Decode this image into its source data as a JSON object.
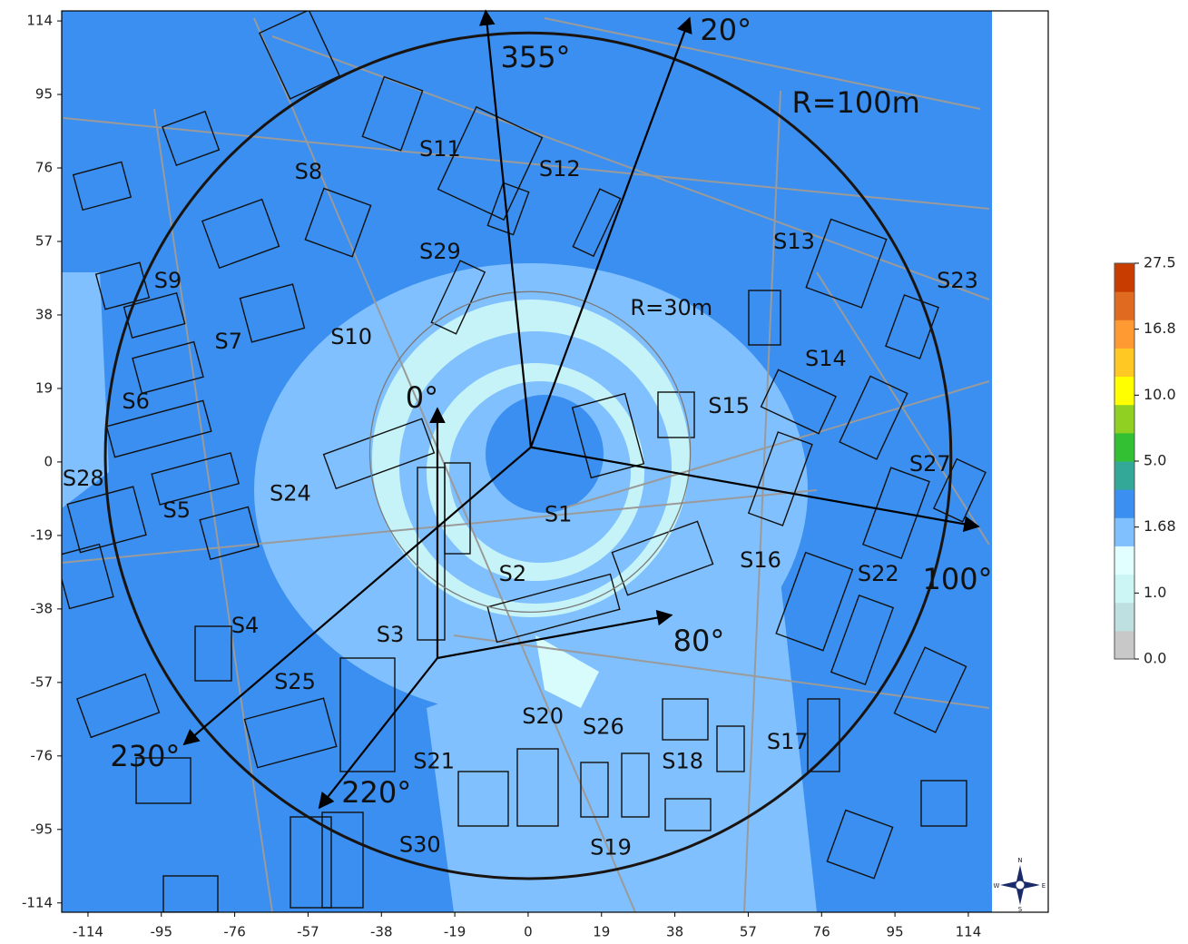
{
  "chart_data": {
    "type": "map",
    "xlim": [
      -120.8,
      134.7
    ],
    "ylim": [
      -116.4,
      116.6
    ],
    "xticks": [
      -114,
      -95,
      -76,
      -57,
      -38,
      -19,
      0,
      19,
      38,
      57,
      76,
      95,
      114
    ],
    "yticks": [
      -114,
      -95,
      -76,
      -57,
      -38,
      -19,
      0,
      19,
      38,
      57,
      76,
      95,
      114
    ],
    "circles": [
      {
        "label": "R=100m",
        "center": [
          0,
          1.6
        ],
        "radius": 109.5,
        "label_at": [
          84.9,
          92.4
        ],
        "color": "#1a1410"
      },
      {
        "label": "R=30m",
        "center": [
          0.5,
          2.6
        ],
        "radius": 41.5,
        "label_at": [
          37.1,
          39.6
        ],
        "color": "#7a7a7a"
      }
    ],
    "arrows": [
      {
        "label": "355°",
        "from": [
          0.7,
          3.8
        ],
        "to": [
          -11.0,
          116.6
        ],
        "label_at": [
          1.9,
          104.2
        ]
      },
      {
        "label": "20°",
        "from": [
          0.7,
          3.8
        ],
        "to": [
          41.8,
          114.7
        ],
        "label_at": [
          51.2,
          111.2
        ]
      },
      {
        "label": "100°",
        "from": [
          0.7,
          3.8
        ],
        "to": [
          116.6,
          -16.7
        ],
        "label_at": [
          111.2,
          -30.7
        ]
      },
      {
        "label": "230°",
        "from": [
          0.7,
          3.8
        ],
        "to": [
          -89.1,
          -73.0
        ],
        "label_at": [
          -99.2,
          -76.5
        ]
      },
      {
        "label": "0°",
        "from": [
          -23.5,
          -50.7
        ],
        "to": [
          -23.5,
          13.8
        ],
        "label_at": [
          -27.5,
          16.2
        ]
      },
      {
        "label": "80°",
        "from": [
          -23.5,
          -50.7
        ],
        "to": [
          37.1,
          -39.6
        ],
        "label_at": [
          44.2,
          -46.7
        ]
      },
      {
        "label": "220°",
        "from": [
          -23.5,
          -50.7
        ],
        "to": [
          -54.1,
          -89.4
        ],
        "label_at": [
          -39.3,
          -85.9
        ]
      }
    ],
    "sites": [
      {
        "label": "S1",
        "x": 7.8,
        "y": -13.8
      },
      {
        "label": "S2",
        "x": -4.0,
        "y": -29.1
      },
      {
        "label": "S3",
        "x": -35.7,
        "y": -44.8
      },
      {
        "label": "S4",
        "x": -73.3,
        "y": -42.5
      },
      {
        "label": "S5",
        "x": -91.0,
        "y": -12.7
      },
      {
        "label": "S6",
        "x": -101.6,
        "y": 15.5
      },
      {
        "label": "S7",
        "x": -77.6,
        "y": 31.0
      },
      {
        "label": "S8",
        "x": -56.9,
        "y": 74.8
      },
      {
        "label": "S9",
        "x": -93.3,
        "y": 46.7
      },
      {
        "label": "S10",
        "x": -45.8,
        "y": 32.1
      },
      {
        "label": "S11",
        "x": -22.8,
        "y": 80.7
      },
      {
        "label": "S12",
        "x": 8.2,
        "y": 75.5
      },
      {
        "label": "S13",
        "x": 68.9,
        "y": 56.8
      },
      {
        "label": "S14",
        "x": 77.1,
        "y": 26.5
      },
      {
        "label": "S15",
        "x": 52.0,
        "y": 14.3
      },
      {
        "label": "S16",
        "x": 60.2,
        "y": -25.6
      },
      {
        "label": "S17",
        "x": 67.2,
        "y": -72.5
      },
      {
        "label": "S18",
        "x": 40.0,
        "y": -77.6
      },
      {
        "label": "S19",
        "x": 21.4,
        "y": -99.9
      },
      {
        "label": "S20",
        "x": 3.8,
        "y": -65.9
      },
      {
        "label": "S21",
        "x": -24.4,
        "y": -77.6
      },
      {
        "label": "S22",
        "x": 90.7,
        "y": -29.1
      },
      {
        "label": "S23",
        "x": 111.2,
        "y": 46.7
      },
      {
        "label": "S24",
        "x": -61.6,
        "y": -8.4
      },
      {
        "label": "S25",
        "x": -60.4,
        "y": -57.0
      },
      {
        "label": "S26",
        "x": 19.5,
        "y": -68.7
      },
      {
        "label": "S27",
        "x": 104.1,
        "y": -0.7
      },
      {
        "label": "S28",
        "x": -115.2,
        "y": -4.5
      },
      {
        "label": "S29",
        "x": -22.8,
        "y": 54.2
      },
      {
        "label": "S30",
        "x": -28.0,
        "y": -99.2
      }
    ],
    "colorbar": {
      "colors": [
        "#c8c8c8",
        "#bfe0e0",
        "#ccf6f6",
        "#e2ffff",
        "#80c0ff",
        "#3a8ff0",
        "#34a898",
        "#33c033",
        "#8fd022",
        "#ffff00",
        "#ffc822",
        "#ff9a33",
        "#e06a20",
        "#c83c00"
      ],
      "ticks": [
        {
          "value": 0,
          "label": "0.0"
        },
        {
          "value": 1,
          "label": "1.0"
        },
        1.68,
        {
          "value": 5,
          "label": "5.0"
        },
        {
          "value": 10,
          "label": "10.0"
        },
        16.8,
        27.5
      ]
    },
    "compass": [
      "N",
      "E",
      "S",
      "W"
    ]
  }
}
